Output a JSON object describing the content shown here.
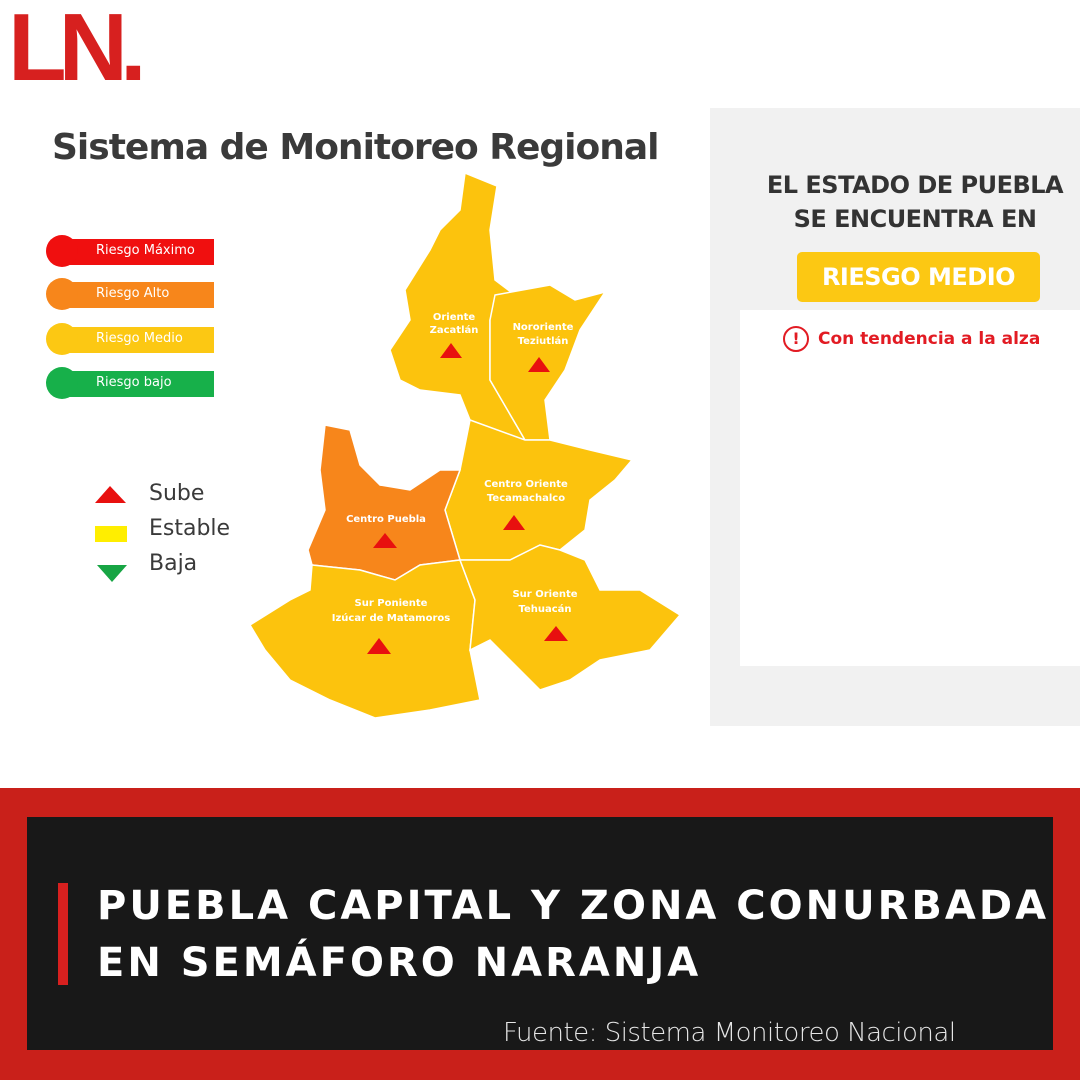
{
  "logo": "LN.",
  "map": {
    "title": "Sistema de Monitoreo Regional",
    "risk_legend": [
      "Riesgo Máximo",
      "Riesgo Alto",
      "Riesgo Medio",
      "Riesgo bajo"
    ],
    "trend_legend": [
      "Sube",
      "Estable",
      "Baja"
    ],
    "regions": [
      {
        "lines": [
          "Oriente",
          "Zacatlán"
        ]
      },
      {
        "lines": [
          "Nororiente",
          "Teziutlán"
        ]
      },
      {
        "lines": [
          "Centro  Oriente",
          "Tecamachalco"
        ]
      },
      {
        "lines": [
          "Centro  Puebla"
        ]
      },
      {
        "lines": [
          "Sur Poniente",
          "Izúcar de Matamoros"
        ]
      },
      {
        "lines": [
          "Sur Oriente",
          "Tehuacán"
        ]
      }
    ]
  },
  "status_panel": {
    "heading": [
      "EL ESTADO DE PUEBLA",
      "SE ENCUENTRA EN"
    ],
    "badge": "RIESGO MEDIO",
    "icon": "!",
    "note": "Con tendencia a la alza"
  },
  "headline": [
    "PUEBLA CAPITAL Y ZONA CONURBADA",
    "EN SEMÁFORO NARANJA"
  ],
  "source": "Fuente: Sistema Monitoreo Nacional"
}
